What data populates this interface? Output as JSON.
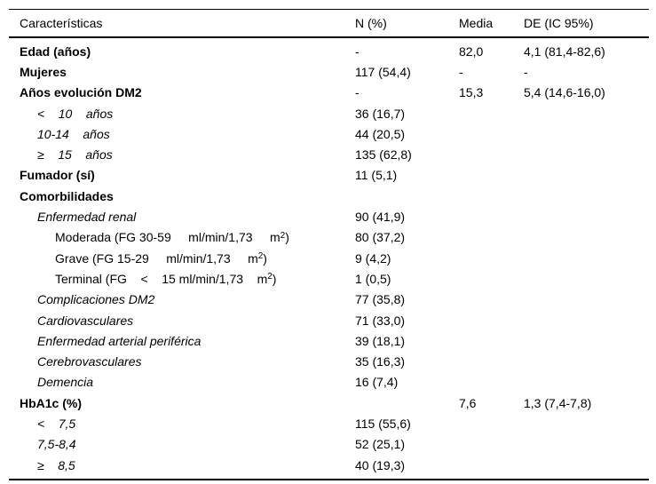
{
  "table": {
    "columns": {
      "caracteristicas": "Características",
      "n_pct": "N (%)",
      "media": "Media",
      "de_ic": "DE (IC 95%)"
    },
    "rows": [
      {
        "label": "Edad (años)",
        "n": "-",
        "media": "82,0",
        "de": "4,1 (81,4-82,6)"
      },
      {
        "label": "Mujeres",
        "n": "117 (54,4)",
        "media": "-",
        "de": "-"
      },
      {
        "label": "Años evolución DM2",
        "n": "-",
        "media": "15,3",
        "de": "5,4 (14,6-16,0)"
      },
      {
        "label": "<    10    años",
        "n": "36 (16,7)",
        "media": "",
        "de": ""
      },
      {
        "label": "10-14    años",
        "n": "44 (20,5)",
        "media": "",
        "de": ""
      },
      {
        "label": "≥    15    años",
        "n": "135 (62,8)",
        "media": "",
        "de": ""
      },
      {
        "label": "Fumador (sí)",
        "n": "11 (5,1)",
        "media": "",
        "de": ""
      },
      {
        "label": "Comorbilidades",
        "n": "",
        "media": "",
        "de": ""
      },
      {
        "label": "Enfermedad renal",
        "n": "90 (41,9)",
        "media": "",
        "de": ""
      },
      {
        "label": "Moderada (FG 30-59     ml/min/1,73     m",
        "sup": "2",
        "label_post": ")",
        "n": "80 (37,2)",
        "media": "",
        "de": ""
      },
      {
        "label": "Grave (FG 15-29     ml/min/1,73     m",
        "sup": "2",
        "label_post": ")",
        "n": "9 (4,2)",
        "media": "",
        "de": ""
      },
      {
        "label": "Terminal (FG    <    15 ml/min/1,73    m",
        "sup": "2",
        "label_post": ")",
        "n": "1 (0,5)",
        "media": "",
        "de": ""
      },
      {
        "label": "Complicaciones DM2",
        "n": "77 (35,8)",
        "media": "",
        "de": ""
      },
      {
        "label": "Cardiovasculares",
        "n": "71 (33,0)",
        "media": "",
        "de": ""
      },
      {
        "label": "Enfermedad arterial periférica",
        "n": "39 (18,1)",
        "media": "",
        "de": ""
      },
      {
        "label": "Cerebrovasculares",
        "n": "35 (16,3)",
        "media": "",
        "de": ""
      },
      {
        "label": "Demencia",
        "n": "16 (7,4)",
        "media": "",
        "de": ""
      },
      {
        "label": "HbA1c (%)",
        "n": "",
        "media": "7,6",
        "de": "1,3 (7,4-7,8)"
      },
      {
        "label": "<    7,5",
        "n": "115 (55,6)",
        "media": "",
        "de": ""
      },
      {
        "label": "7,5-8,4",
        "n": "52 (25,1)",
        "media": "",
        "de": ""
      },
      {
        "label": "≥    8,5",
        "n": "40 (19,3)",
        "media": "",
        "de": ""
      }
    ]
  }
}
